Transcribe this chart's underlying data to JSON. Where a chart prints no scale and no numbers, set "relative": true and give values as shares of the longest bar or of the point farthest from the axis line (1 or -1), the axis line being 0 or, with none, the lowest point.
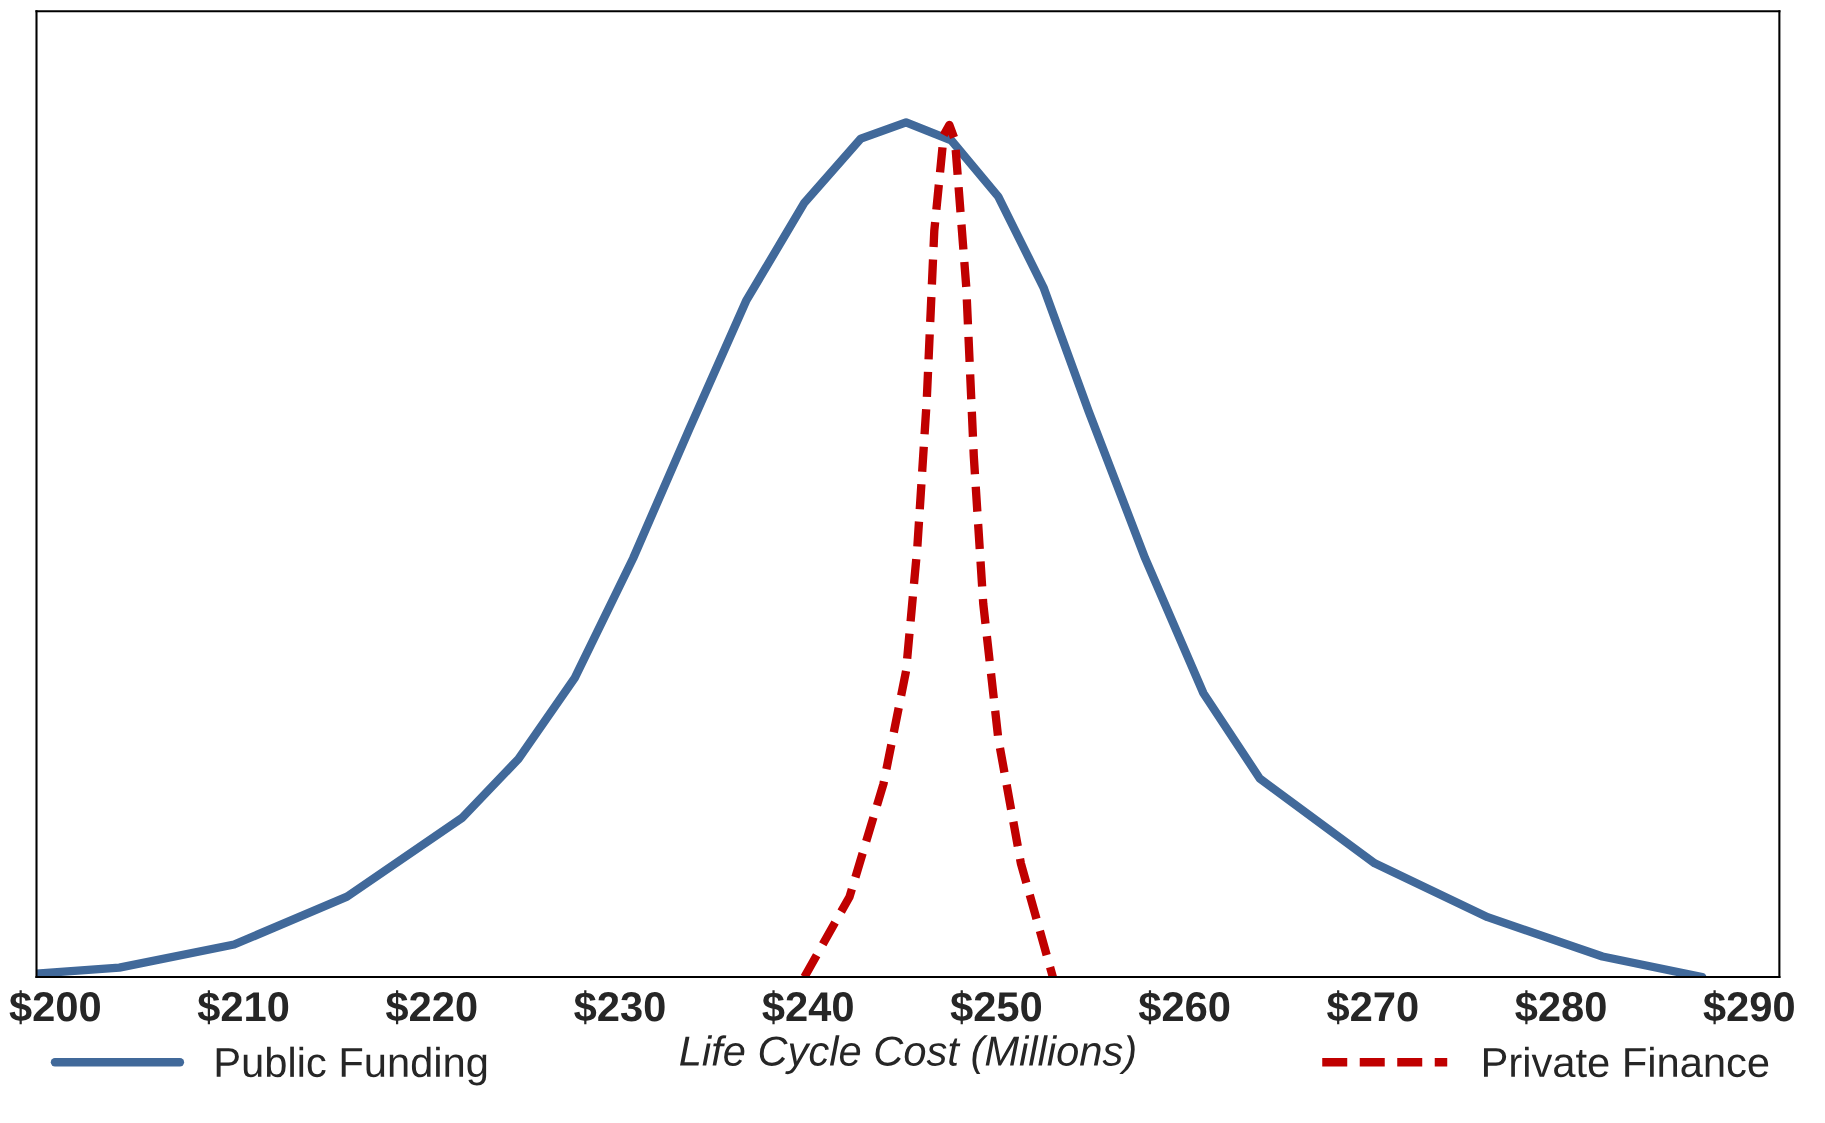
{
  "chart_data": {
    "type": "line",
    "xlabel": "Life Cycle Cost (Millions)",
    "relative": true,
    "xlim": [
      199,
      291.6
    ],
    "xticks": [
      {
        "value": 200,
        "label": "$200"
      },
      {
        "value": 210,
        "label": "$210"
      },
      {
        "value": 220,
        "label": "$220"
      },
      {
        "value": 230,
        "label": "$230"
      },
      {
        "value": 240,
        "label": "$240"
      },
      {
        "value": 250,
        "label": "$250"
      },
      {
        "value": 260,
        "label": "$260"
      },
      {
        "value": 270,
        "label": "$270"
      },
      {
        "value": 280,
        "label": "$280"
      },
      {
        "value": 290,
        "label": "$290"
      }
    ],
    "legend": "bottom",
    "grid": false,
    "series": [
      {
        "name": "Public Funding",
        "color": "#41699a",
        "line_style": "solid",
        "x": [
          199.0,
          203.4,
          209.5,
          215.5,
          221.6,
          224.6,
          227.6,
          230.7,
          233.7,
          236.7,
          239.8,
          242.8,
          245.2,
          247.6,
          250.1,
          252.5,
          254.9,
          257.9,
          261.0,
          264.0,
          270.1,
          276.1,
          282.2,
          287.5
        ],
        "values": [
          0.004,
          0.011,
          0.038,
          0.094,
          0.186,
          0.255,
          0.35,
          0.49,
          0.642,
          0.791,
          0.906,
          0.981,
          1.0,
          0.979,
          0.913,
          0.807,
          0.662,
          0.49,
          0.332,
          0.232,
          0.133,
          0.07,
          0.024,
          0.0
        ]
      },
      {
        "name": "Private Finance",
        "color": "#c00000",
        "line_style": "dashed",
        "x": [
          239.8,
          242.2,
          244.0,
          245.2,
          245.8,
          246.3,
          246.7,
          247.2,
          247.5,
          247.8,
          248.4,
          248.8,
          249.3,
          250.1,
          251.3,
          253.0
        ],
        "values": [
          0.0,
          0.094,
          0.226,
          0.358,
          0.503,
          0.675,
          0.873,
          0.985,
          0.997,
          0.979,
          0.807,
          0.609,
          0.437,
          0.279,
          0.133,
          0.0
        ]
      }
    ]
  }
}
